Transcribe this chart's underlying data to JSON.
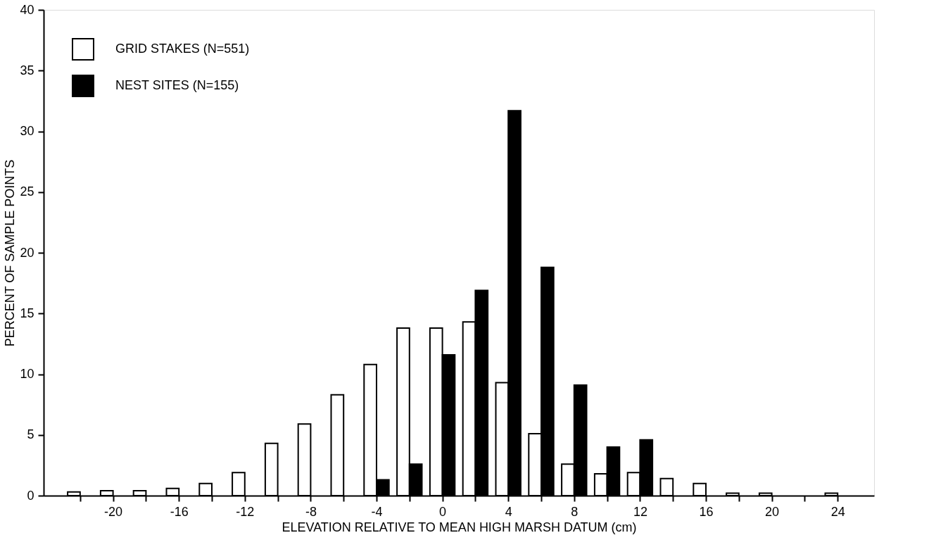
{
  "chart_data": {
    "type": "bar",
    "xlabel": "ELEVATION RELATIVE TO MEAN HIGH MARSH DATUM (cm)",
    "ylabel": "PERCENT OF SAMPLE POINTS",
    "x": [
      -22,
      -20,
      -18,
      -16,
      -14,
      -12,
      -10,
      -8,
      -6,
      -4,
      -2,
      0,
      2,
      4,
      6,
      8,
      10,
      12,
      14,
      16,
      18,
      20,
      22,
      24
    ],
    "series": [
      {
        "name": "GRID STAKES (N=551)",
        "color": "#ffffff",
        "values": [
          0.3,
          0.4,
          0.4,
          0.6,
          1.0,
          1.9,
          4.3,
          5.9,
          8.3,
          10.8,
          13.8,
          13.8,
          14.3,
          9.3,
          5.1,
          2.6,
          1.8,
          1.9,
          1.4,
          1.0,
          0.2,
          0.2,
          null,
          0.2
        ]
      },
      {
        "name": "NEST SITES (N=155)",
        "color": "#000000",
        "values": [
          null,
          null,
          null,
          null,
          null,
          null,
          null,
          null,
          null,
          1.3,
          2.6,
          11.6,
          16.9,
          31.7,
          18.8,
          9.1,
          4.0,
          4.6,
          null,
          null,
          null,
          null,
          null,
          null
        ]
      }
    ],
    "xlim": [
      -24,
      26
    ],
    "xticks": [
      {
        "value": -22,
        "label": null
      },
      -20,
      {
        "value": -18,
        "label": null
      },
      -16,
      {
        "value": -14,
        "label": null
      },
      -12,
      {
        "value": -10,
        "label": null
      },
      -8,
      {
        "value": -6,
        "label": null
      },
      -4,
      {
        "value": -2,
        "label": null
      },
      0,
      {
        "value": 2,
        "label": null
      },
      4,
      {
        "value": 6,
        "label": null
      },
      8,
      {
        "value": 10,
        "label": null
      },
      12,
      {
        "value": 14,
        "label": null
      },
      16,
      {
        "value": 18,
        "label": null
      },
      20,
      {
        "value": 22,
        "label": null
      },
      24
    ],
    "ylim": [
      0,
      40
    ],
    "yticks": [
      0,
      5,
      10,
      15,
      20,
      25,
      30,
      35,
      40
    ],
    "grid": false,
    "legend": "top left"
  }
}
